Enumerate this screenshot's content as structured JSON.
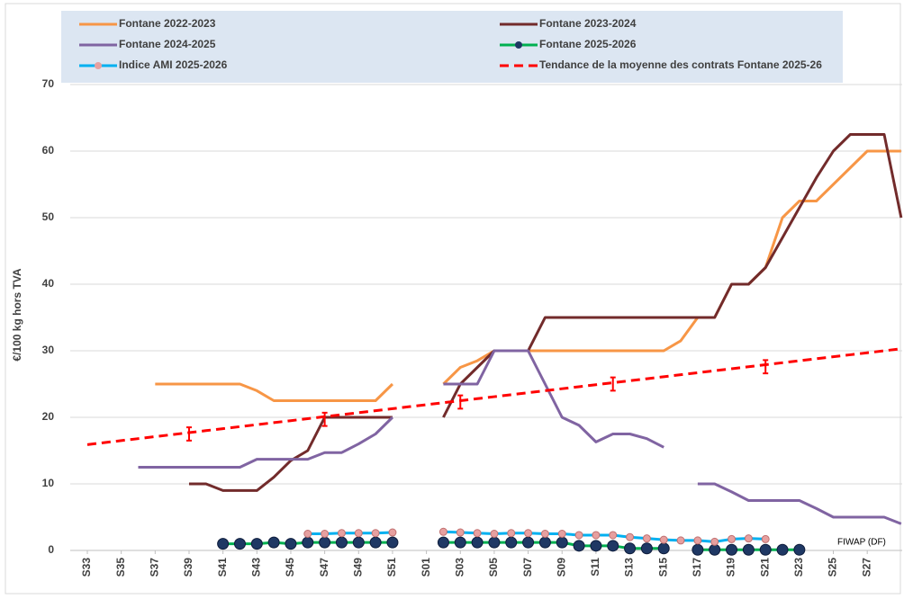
{
  "chart_data": {
    "type": "line",
    "y_label": "€/100 kg hors TVA",
    "annotation": "FIWAP (DF)",
    "ylim": [
      0,
      70
    ],
    "yticks": [
      0,
      10,
      20,
      30,
      40,
      50,
      60,
      70
    ],
    "grid": true,
    "legend": "top",
    "categories": [
      "S33",
      null,
      "S35",
      null,
      "S37",
      null,
      "S39",
      null,
      "S41",
      null,
      "S43",
      null,
      "S45",
      null,
      "S47",
      null,
      "S49",
      null,
      "S51",
      null,
      "S01",
      null,
      "S03",
      null,
      "S05",
      null,
      "S07",
      null,
      "S09",
      null,
      "S11",
      null,
      "S13",
      null,
      "S15",
      null,
      "S17",
      null,
      "S19",
      null,
      "S21",
      null,
      "S23",
      null,
      "S25",
      null,
      "S27",
      null,
      null
    ],
    "series": [
      {
        "name": "Fontane 2022-2023",
        "color": "#f79646",
        "values": [
          null,
          null,
          null,
          null,
          25,
          25,
          25,
          25,
          25,
          25,
          24,
          22.5,
          22.5,
          22.5,
          22.5,
          22.5,
          22.5,
          22.5,
          25,
          null,
          null,
          25,
          27.5,
          28.5,
          30,
          30,
          30,
          30,
          30,
          30,
          30,
          30,
          30,
          30,
          30,
          31.5,
          35,
          35,
          40,
          40,
          42.5,
          50,
          52.5,
          52.5,
          55,
          57.5,
          60,
          60,
          60
        ]
      },
      {
        "name": "Fontane 2023-2024",
        "color": "#722b2b",
        "values": [
          null,
          null,
          null,
          null,
          null,
          null,
          10,
          10,
          9,
          9,
          9,
          11,
          13.5,
          15,
          20,
          20,
          20,
          20,
          20,
          null,
          null,
          20,
          25,
          27.5,
          30,
          30,
          30,
          35,
          35,
          35,
          35,
          35,
          35,
          35,
          35,
          35,
          35,
          35,
          40,
          40,
          42.5,
          47,
          51.5,
          56,
          60,
          62.5,
          62.5,
          62.5,
          50
        ]
      },
      {
        "name": "Fontane 2024-2025",
        "color": "#8064a2",
        "values": [
          null,
          null,
          null,
          12.5,
          12.5,
          12.5,
          12.5,
          12.5,
          12.5,
          12.5,
          13.7,
          13.7,
          13.7,
          13.7,
          14.7,
          14.7,
          16,
          17.5,
          20,
          null,
          null,
          25,
          25,
          25,
          30,
          30,
          30,
          25,
          20,
          18.8,
          16.3,
          17.5,
          17.5,
          16.8,
          15.5,
          null,
          10,
          10,
          8.8,
          7.5,
          7.5,
          7.5,
          7.5,
          6.3,
          5,
          5,
          5,
          5,
          4
        ]
      },
      {
        "name": "Fontane 2025-2026",
        "color": "#00b050",
        "marker_color": "#1f3864",
        "markers": true,
        "values": [
          null,
          null,
          null,
          null,
          null,
          null,
          null,
          null,
          1,
          1,
          1,
          1.2,
          1,
          1.2,
          1.2,
          1.2,
          1.2,
          1.2,
          1.2,
          null,
          null,
          1.2,
          1.2,
          1.2,
          1.2,
          1.2,
          1.2,
          1.2,
          1.2,
          0.7,
          0.7,
          0.7,
          0.3,
          0.3,
          0.3,
          null,
          0.1,
          0.1,
          0.1,
          0.1,
          0.1,
          0.1,
          0.1,
          null,
          null,
          null,
          null,
          null,
          null
        ]
      },
      {
        "name": "Indice AMI 2025-2026",
        "color": "#00b0f0",
        "marker_color": "#e6a0a0",
        "markers": true,
        "values": [
          null,
          null,
          null,
          null,
          null,
          null,
          null,
          null,
          null,
          null,
          null,
          null,
          null,
          2.5,
          2.5,
          2.6,
          2.6,
          2.6,
          2.7,
          null,
          null,
          2.8,
          2.7,
          2.6,
          2.5,
          2.6,
          2.6,
          2.5,
          2.5,
          2.3,
          2.3,
          2.3,
          2.0,
          1.8,
          1.6,
          1.5,
          1.5,
          1.3,
          1.7,
          1.8,
          1.7,
          null,
          null,
          null,
          null,
          null,
          null,
          null,
          null
        ]
      },
      {
        "name": "Tendance de la moyenne des contrats Fontane 2025-26",
        "color": "#ff0000",
        "dash": true,
        "values": [
          15.9,
          16.2,
          16.5,
          16.8,
          17.1,
          17.4,
          17.7,
          18,
          18.3,
          18.6,
          18.9,
          19.2,
          19.5,
          19.8,
          20.1,
          20.4,
          20.7,
          21,
          21.3,
          21.6,
          21.9,
          22.2,
          22.5,
          22.8,
          23.1,
          23.4,
          23.7,
          24,
          24.3,
          24.6,
          24.9,
          25.2,
          25.5,
          25.8,
          26.1,
          26.4,
          26.7,
          27,
          27.3,
          27.6,
          27.9,
          28.2,
          28.5,
          28.8,
          29.1,
          29.4,
          29.7,
          30,
          30.3
        ]
      }
    ],
    "error_bars": {
      "color": "#ff0000",
      "values": [
        null,
        null,
        null,
        null,
        null,
        null,
        17.5,
        null,
        null,
        null,
        null,
        null,
        null,
        null,
        19.7,
        null,
        null,
        null,
        null,
        null,
        null,
        null,
        22.3,
        null,
        null,
        null,
        null,
        null,
        null,
        null,
        null,
        25,
        null,
        null,
        null,
        null,
        null,
        null,
        null,
        null,
        27.6,
        null,
        null,
        null,
        null,
        null,
        null,
        null,
        null
      ],
      "errors": [
        null,
        null,
        null,
        null,
        null,
        null,
        1,
        null,
        null,
        null,
        null,
        null,
        null,
        null,
        1,
        null,
        null,
        null,
        null,
        null,
        null,
        null,
        1,
        null,
        null,
        null,
        null,
        null,
        null,
        null,
        null,
        1,
        null,
        null,
        null,
        null,
        null,
        null,
        null,
        null,
        1,
        null,
        null,
        null,
        null,
        null,
        null,
        null,
        null
      ]
    }
  }
}
